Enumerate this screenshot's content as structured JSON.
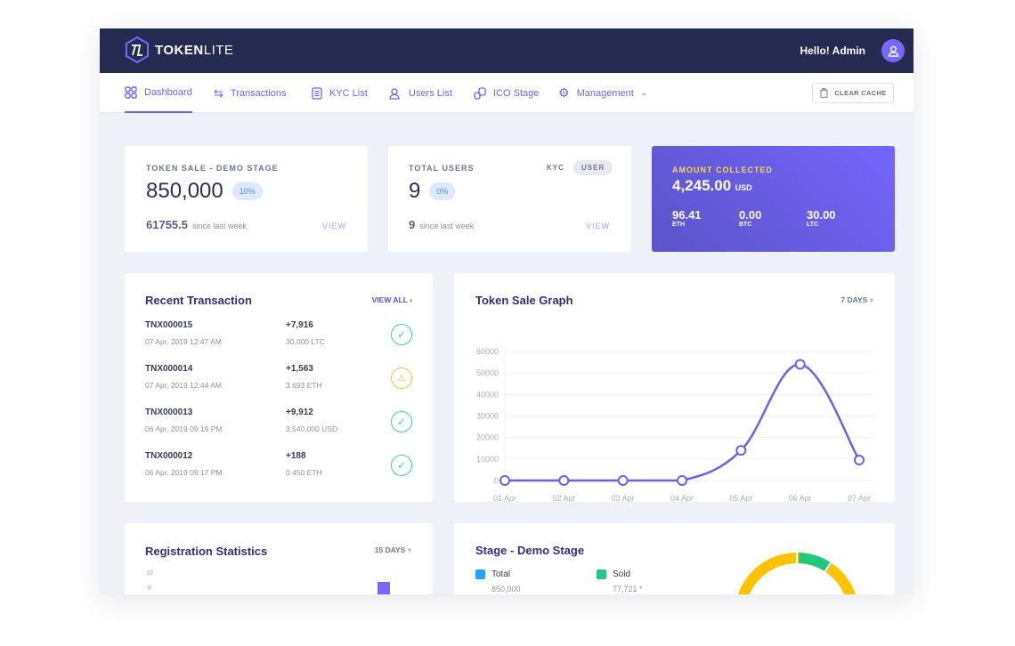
{
  "brand": {
    "name_bold": "TOKEN",
    "name_light": "LITE",
    "logo_text": "TL"
  },
  "header": {
    "greeting": "Hello! Admin"
  },
  "nav": {
    "items": [
      {
        "label": "Dashboard",
        "icon": "grid-icon",
        "active": true
      },
      {
        "label": "Transactions",
        "icon": "swap-icon"
      },
      {
        "label": "KYC List",
        "icon": "document-icon"
      },
      {
        "label": "Users List",
        "icon": "user-icon"
      },
      {
        "label": "ICO Stage",
        "icon": "coins-icon"
      },
      {
        "label": "Management",
        "icon": "gear-icon",
        "dropdown": true
      }
    ],
    "clear_cache": "CLEAR CACHE"
  },
  "token_sale": {
    "label": "TOKEN SALE - DEMO STAGE",
    "value": "850,000",
    "percent": "10%",
    "since_value": "61755.5",
    "since_text": "since last week",
    "view": "VIEW"
  },
  "total_users": {
    "label": "TOTAL USERS",
    "tab_kyc": "KYC",
    "tab_user": "USER",
    "value": "9",
    "percent": "0%",
    "since_value": "9",
    "since_text": "since last week",
    "view": "VIEW"
  },
  "amount": {
    "label": "AMOUNT COLLECTED",
    "value": "4,245.00",
    "unit": "USD",
    "coins": [
      {
        "value": "96.41",
        "name": "ETH"
      },
      {
        "value": "0.00",
        "name": "BTC"
      },
      {
        "value": "30.00",
        "name": "LTC"
      }
    ]
  },
  "recent": {
    "title": "Recent Transaction",
    "view_all": "VIEW ALL",
    "items": [
      {
        "id": "TNX000015",
        "date": "07 Apr, 2019 12:47 AM",
        "amount": "+7,916",
        "currency": "30.000 LTC",
        "status": "success"
      },
      {
        "id": "TNX000014",
        "date": "07 Apr, 2019 12:44 AM",
        "amount": "+1,563",
        "currency": "3.693 ETH",
        "status": "pending"
      },
      {
        "id": "TNX000013",
        "date": "06 Apr, 2019 09:19 PM",
        "amount": "+9,912",
        "currency": "3,540.000 USD",
        "status": "success"
      },
      {
        "id": "TNX000012",
        "date": "06 Apr, 2019 09:17 PM",
        "amount": "+188",
        "currency": "0.450 ETH",
        "status": "success"
      }
    ]
  },
  "graph": {
    "title": "Token Sale Graph",
    "range": "7 DAYS"
  },
  "chart_data": {
    "type": "line",
    "categories": [
      "01 Apr",
      "02 Apr",
      "03 Apr",
      "04 Apr",
      "05 Apr",
      "06 Apr",
      "07 Apr"
    ],
    "values": [
      0,
      0,
      0,
      0,
      14000,
      54000,
      9500
    ],
    "ylim": [
      0,
      60000
    ],
    "yticks": [
      "0",
      "10000",
      "20000",
      "30000",
      "40000",
      "50000",
      "60000"
    ],
    "grid": true,
    "color": "#6e5ef0"
  },
  "registration": {
    "title": "Registration Statistics",
    "range": "15 DAYS",
    "yticks": [
      "10",
      "8"
    ]
  },
  "stage": {
    "title": "Stage - Demo Stage",
    "total_label": "Total",
    "total_value": "850,000",
    "sold_label": "Sold",
    "sold_value": "77,721 *",
    "colors": {
      "total": "#1ea7fd",
      "sold": "#21c77c",
      "remaining": "#ffc100"
    }
  }
}
